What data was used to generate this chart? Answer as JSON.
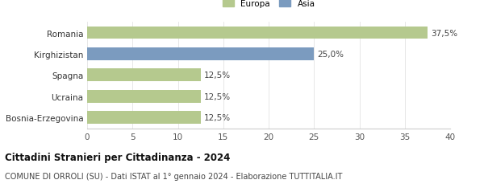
{
  "categories": [
    "Bosnia-Erzegovina",
    "Ucraina",
    "Spagna",
    "Kirghizistan",
    "Romania"
  ],
  "values": [
    12.5,
    12.5,
    12.5,
    25.0,
    37.5
  ],
  "bar_colors": [
    "#b5c98e",
    "#b5c98e",
    "#b5c98e",
    "#7b9bbf",
    "#b5c98e"
  ],
  "bar_labels": [
    "12,5%",
    "12,5%",
    "12,5%",
    "25,0%",
    "37,5%"
  ],
  "legend_entries": [
    "Europa",
    "Asia"
  ],
  "legend_colors": [
    "#b5c98e",
    "#7b9bbf"
  ],
  "xlim": [
    0,
    40
  ],
  "xticks": [
    0,
    5,
    10,
    15,
    20,
    25,
    30,
    35,
    40
  ],
  "title": "Cittadini Stranieri per Cittadinanza - 2024",
  "subtitle": "COMUNE DI ORROLI (SU) - Dati ISTAT al 1° gennaio 2024 - Elaborazione TUTTITALIA.IT",
  "title_fontsize": 8.5,
  "subtitle_fontsize": 7.0,
  "label_fontsize": 7.5,
  "tick_fontsize": 7.5,
  "background_color": "#ffffff",
  "bar_height": 0.6
}
